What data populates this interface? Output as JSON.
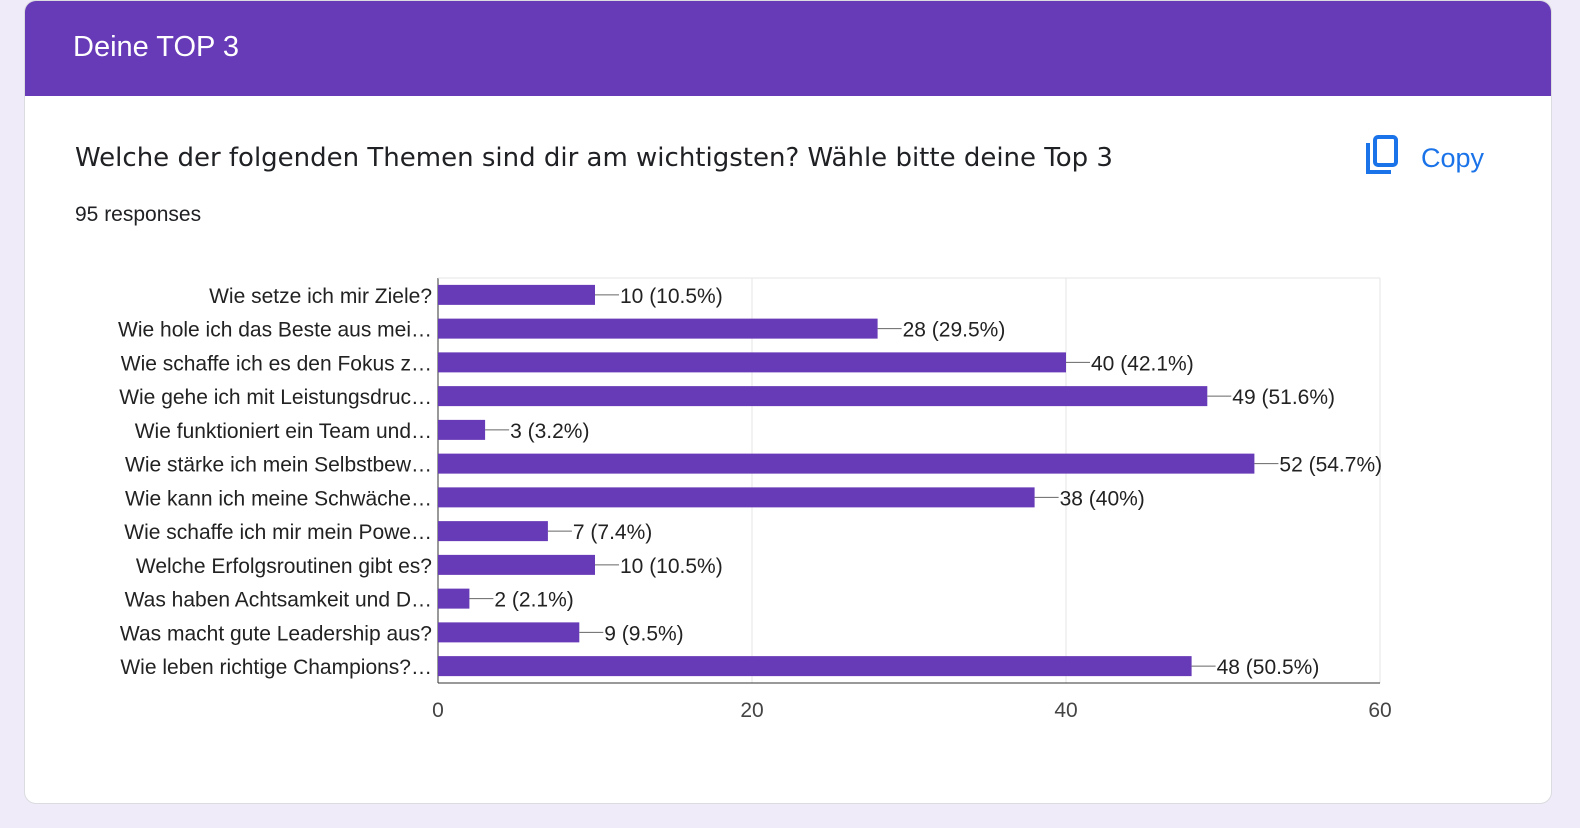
{
  "header": {
    "title": "Deine TOP 3"
  },
  "question": {
    "title": "Welche der folgenden Themen sind dir am wichtigsten? Wähle bitte deine Top 3",
    "responses": "95 responses",
    "copy_label": "Copy"
  },
  "colors": {
    "bar": "#673ab7",
    "accent": "#1a73e8"
  },
  "chart_data": {
    "type": "bar",
    "orientation": "horizontal",
    "categories": [
      "Wie setze ich mir Ziele?",
      "Wie hole ich das Beste aus mei…",
      "Wie schaffe ich es den Fokus z…",
      "Wie gehe ich mit Leistungsdruc…",
      "Wie funktioniert ein Team und…",
      "Wie stärke ich mein Selbstbew…",
      "Wie kann ich meine Schwäche…",
      "Wie schaffe ich mir mein Powe…",
      "Welche Erfolgsroutinen gibt es?",
      "Was haben Achtsamkeit und D…",
      "Was macht gute Leadership aus?",
      "Wie leben richtige Champions?…"
    ],
    "values": [
      10,
      28,
      40,
      49,
      3,
      52,
      38,
      7,
      10,
      2,
      9,
      48
    ],
    "labels": [
      "10 (10.5%)",
      "28 (29.5%)",
      "40 (42.1%)",
      "49 (51.6%)",
      "3 (3.2%)",
      "52 (54.7%)",
      "38 (40%)",
      "7 (7.4%)",
      "10 (10.5%)",
      "2 (2.1%)",
      "9 (9.5%)",
      "48 (50.5%)"
    ],
    "xlim": [
      0,
      60
    ],
    "xticks": [
      "0",
      "20",
      "40",
      "60"
    ],
    "grid": true
  }
}
